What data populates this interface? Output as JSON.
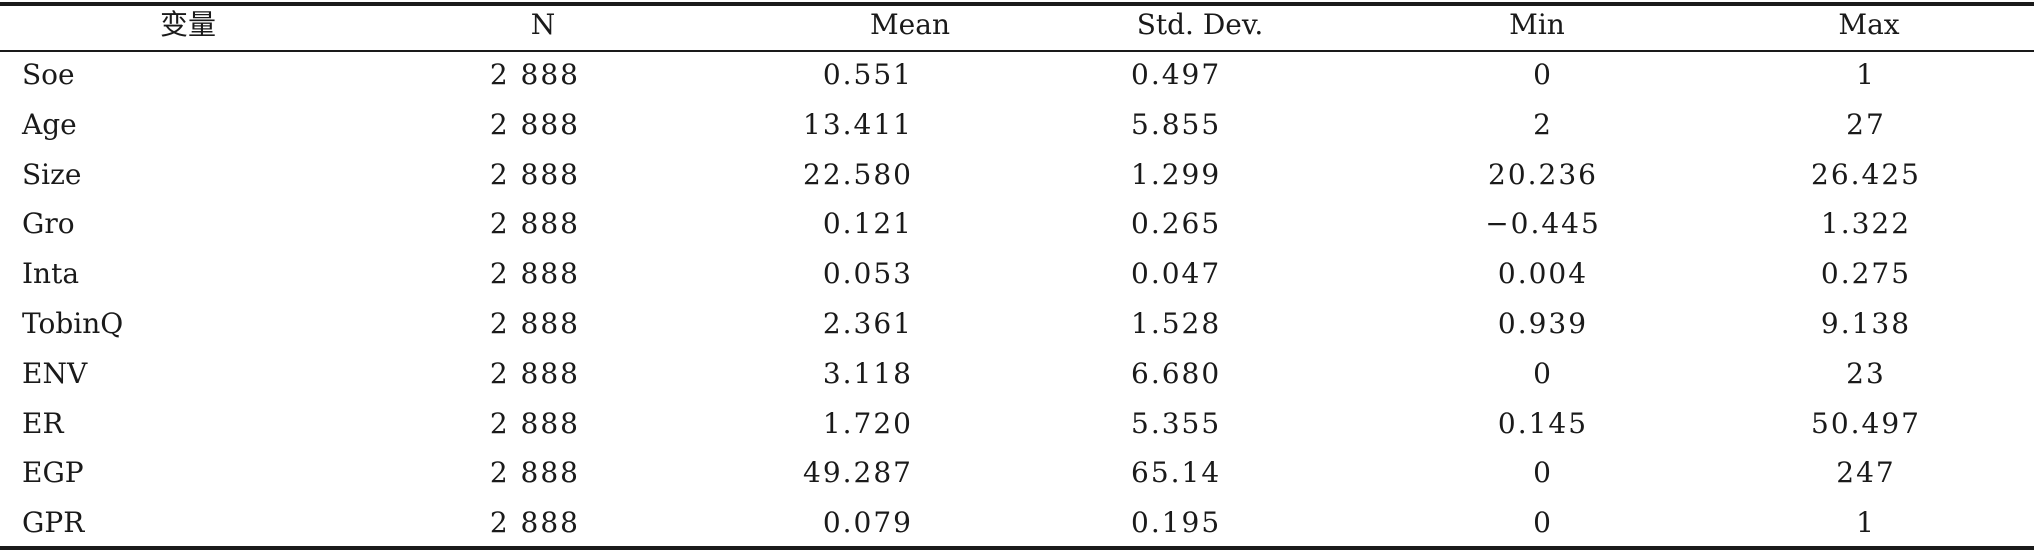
{
  "headers": [
    "变量",
    "N",
    "Mean",
    "Std. Dev.",
    "Min",
    "Max"
  ],
  "rows": [
    [
      "Soe",
      "2 888",
      "0.551",
      "0.497",
      "0",
      "1"
    ],
    [
      "Age",
      "2 888",
      "13.411",
      "5.855",
      "2",
      "27"
    ],
    [
      "Size",
      "2 888",
      "22.580",
      "1.299",
      "20.236",
      "26.425"
    ],
    [
      "Gro",
      "2 888",
      "0.121",
      "0.265",
      "−0.445",
      "1.322"
    ],
    [
      "Inta",
      "2 888",
      "0.053",
      "0.047",
      "0.004",
      "0.275"
    ],
    [
      "TobinQ",
      "2 888",
      "2.361",
      "1.528",
      "0.939",
      "9.138"
    ],
    [
      "ENV",
      "2 888",
      "3.118",
      "6.680",
      "0",
      "23"
    ],
    [
      "ER",
      "2 888",
      "1.720",
      "5.355",
      "0.145",
      "50.497"
    ],
    [
      "EGP",
      "2 888",
      "49.287",
      "65.14",
      "0",
      "247"
    ],
    [
      "GPR",
      "2 888",
      "0.079",
      "0.195",
      "0",
      "1"
    ]
  ]
}
